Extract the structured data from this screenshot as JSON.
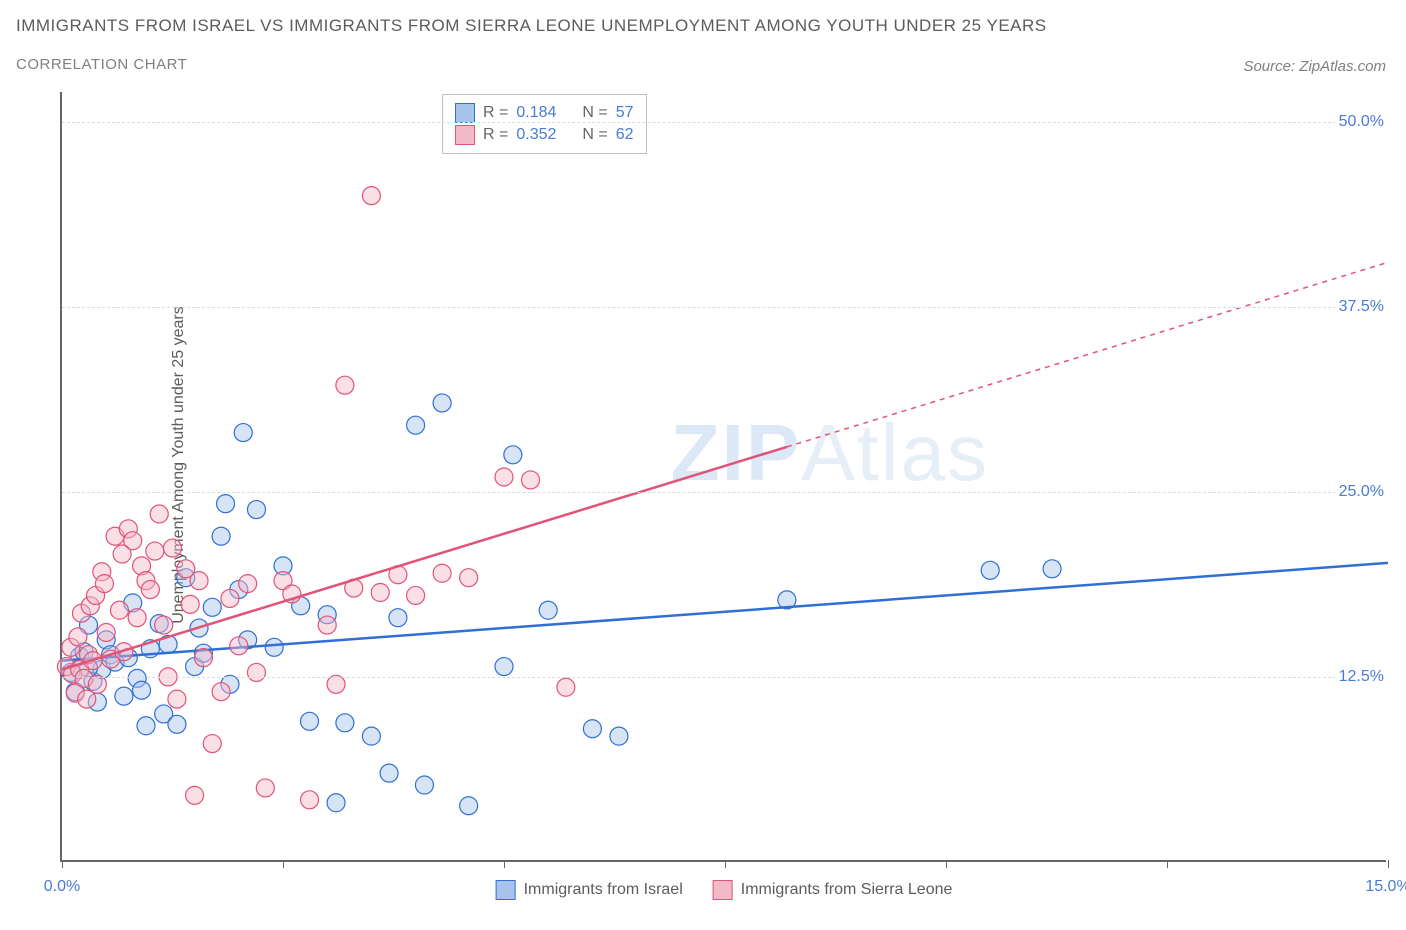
{
  "title": "IMMIGRANTS FROM ISRAEL VS IMMIGRANTS FROM SIERRA LEONE UNEMPLOYMENT AMONG YOUTH UNDER 25 YEARS",
  "subtitle": "CORRELATION CHART",
  "source": "Source: ZipAtlas.com",
  "watermark_zip": "ZIP",
  "watermark_atlas": "Atlas",
  "yaxis_title": "Unemployment Among Youth under 25 years",
  "chart": {
    "type": "scatter",
    "xlim": [
      0,
      15
    ],
    "ylim": [
      0,
      52
    ],
    "xticks": [
      0,
      2.5,
      5,
      7.5,
      10,
      12.5,
      15
    ],
    "xlabels_shown": {
      "0": "0.0%",
      "15": "15.0%"
    },
    "yticks": [
      12.5,
      25,
      37.5,
      50
    ],
    "ylabels": {
      "12.5": "12.5%",
      "25": "25.0%",
      "37.5": "37.5%",
      "50": "50.0%"
    },
    "background_color": "#ffffff",
    "grid_color": "#dcdcdc",
    "axis_color": "#666666",
    "marker_radius": 9,
    "marker_opacity": 0.45,
    "series": [
      {
        "name": "Immigrants from Israel",
        "color_fill": "#a7c3ec",
        "color_stroke": "#2f6fd6",
        "R": "0.184",
        "N": "57",
        "trend": {
          "x1": 0,
          "y1": 13.6,
          "x2": 15,
          "y2": 20.2,
          "solid_until_x": 15
        },
        "points": [
          [
            0.1,
            12.8
          ],
          [
            0.15,
            11.5
          ],
          [
            0.2,
            13.9
          ],
          [
            0.25,
            14.2
          ],
          [
            0.3,
            16.0
          ],
          [
            0.35,
            12.2
          ],
          [
            0.4,
            10.8
          ],
          [
            0.45,
            13.0
          ],
          [
            0.5,
            15.0
          ],
          [
            0.55,
            14.0
          ],
          [
            0.6,
            13.5
          ],
          [
            0.7,
            11.2
          ],
          [
            0.75,
            13.8
          ],
          [
            0.8,
            17.5
          ],
          [
            0.85,
            12.4
          ],
          [
            0.9,
            11.6
          ],
          [
            0.95,
            9.2
          ],
          [
            1.0,
            14.4
          ],
          [
            1.1,
            16.1
          ],
          [
            1.15,
            10.0
          ],
          [
            1.2,
            14.7
          ],
          [
            1.3,
            9.3
          ],
          [
            1.4,
            19.2
          ],
          [
            1.5,
            13.2
          ],
          [
            1.55,
            15.8
          ],
          [
            1.6,
            14.1
          ],
          [
            1.7,
            17.2
          ],
          [
            1.8,
            22.0
          ],
          [
            1.85,
            24.2
          ],
          [
            1.9,
            12.0
          ],
          [
            2.0,
            18.4
          ],
          [
            2.05,
            29.0
          ],
          [
            2.1,
            15.0
          ],
          [
            2.2,
            23.8
          ],
          [
            2.4,
            14.5
          ],
          [
            2.5,
            20.0
          ],
          [
            2.7,
            17.3
          ],
          [
            2.8,
            9.5
          ],
          [
            3.0,
            16.7
          ],
          [
            3.1,
            4.0
          ],
          [
            3.2,
            9.4
          ],
          [
            3.5,
            8.5
          ],
          [
            3.7,
            6.0
          ],
          [
            3.8,
            16.5
          ],
          [
            4.0,
            29.5
          ],
          [
            4.1,
            5.2
          ],
          [
            4.3,
            31.0
          ],
          [
            4.6,
            3.8
          ],
          [
            5.0,
            13.2
          ],
          [
            5.1,
            27.5
          ],
          [
            5.5,
            17.0
          ],
          [
            6.0,
            9.0
          ],
          [
            6.3,
            8.5
          ],
          [
            8.2,
            17.7
          ],
          [
            10.5,
            19.7
          ],
          [
            11.2,
            19.8
          ],
          [
            0.3,
            13.1
          ]
        ]
      },
      {
        "name": "Immigrants from Sierra Leone",
        "color_fill": "#f3b9c8",
        "color_stroke": "#e15377",
        "R": "0.352",
        "N": "62",
        "trend": {
          "x1": 0,
          "y1": 13.0,
          "x2": 15,
          "y2": 40.5,
          "solid_until_x": 8.2
        },
        "points": [
          [
            0.05,
            13.2
          ],
          [
            0.1,
            14.5
          ],
          [
            0.12,
            12.7
          ],
          [
            0.15,
            11.4
          ],
          [
            0.18,
            15.2
          ],
          [
            0.2,
            13.0
          ],
          [
            0.22,
            16.8
          ],
          [
            0.25,
            12.4
          ],
          [
            0.3,
            14.0
          ],
          [
            0.32,
            17.3
          ],
          [
            0.35,
            13.6
          ],
          [
            0.38,
            18.0
          ],
          [
            0.4,
            12.0
          ],
          [
            0.45,
            19.6
          ],
          [
            0.5,
            15.5
          ],
          [
            0.55,
            13.7
          ],
          [
            0.6,
            22.0
          ],
          [
            0.65,
            17.0
          ],
          [
            0.7,
            14.2
          ],
          [
            0.75,
            22.5
          ],
          [
            0.8,
            21.7
          ],
          [
            0.85,
            16.5
          ],
          [
            0.9,
            20.0
          ],
          [
            0.95,
            19.0
          ],
          [
            1.0,
            18.4
          ],
          [
            1.05,
            21.0
          ],
          [
            1.1,
            23.5
          ],
          [
            1.15,
            16.0
          ],
          [
            1.2,
            12.5
          ],
          [
            1.3,
            11.0
          ],
          [
            1.4,
            19.8
          ],
          [
            1.5,
            4.5
          ],
          [
            1.55,
            19.0
          ],
          [
            1.6,
            13.8
          ],
          [
            1.7,
            8.0
          ],
          [
            1.8,
            11.5
          ],
          [
            1.9,
            17.8
          ],
          [
            2.0,
            14.6
          ],
          [
            2.1,
            18.8
          ],
          [
            2.2,
            12.8
          ],
          [
            2.3,
            5.0
          ],
          [
            2.5,
            19.0
          ],
          [
            2.6,
            18.1
          ],
          [
            2.8,
            4.2
          ],
          [
            3.0,
            16.0
          ],
          [
            3.1,
            12.0
          ],
          [
            3.2,
            32.2
          ],
          [
            3.3,
            18.5
          ],
          [
            3.5,
            45.0
          ],
          [
            3.6,
            18.2
          ],
          [
            3.8,
            19.4
          ],
          [
            4.0,
            18.0
          ],
          [
            4.3,
            19.5
          ],
          [
            4.6,
            19.2
          ],
          [
            5.0,
            26.0
          ],
          [
            5.3,
            25.8
          ],
          [
            5.7,
            11.8
          ],
          [
            0.28,
            11.0
          ],
          [
            0.48,
            18.8
          ],
          [
            0.68,
            20.8
          ],
          [
            1.25,
            21.2
          ],
          [
            1.45,
            17.4
          ]
        ]
      }
    ]
  },
  "legend": {
    "israel": "Immigrants from Israel",
    "sierra": "Immigrants from Sierra Leone"
  },
  "stats_labels": {
    "R": "R =",
    "N": "N ="
  }
}
